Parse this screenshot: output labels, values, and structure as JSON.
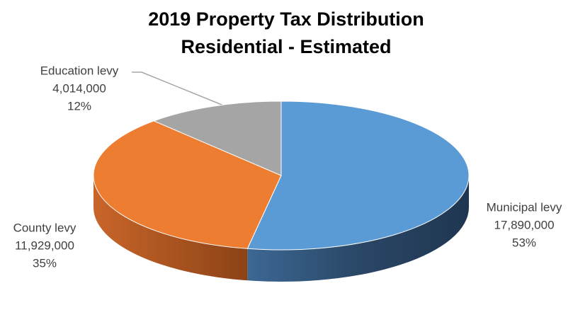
{
  "chart_data": {
    "type": "pie3d",
    "title": "2019 Property Tax Distribution",
    "subtitle": "Residential - Estimated",
    "categories": [
      "Municipal levy",
      "County levy",
      "Education levy"
    ],
    "values": [
      17890000,
      11929000,
      4014000
    ],
    "value_labels": [
      "17,890,000",
      "11,929,000",
      "4,014,000"
    ],
    "percentages": [
      53,
      35,
      12
    ],
    "percentage_labels": [
      "53%",
      "35%",
      "12%"
    ],
    "colors": [
      "#5b9bd5",
      "#ed7d31",
      "#a5a5a5"
    ],
    "side_colors": [
      "#243f5e",
      "#a2501a",
      "#6e6e6e"
    ]
  }
}
